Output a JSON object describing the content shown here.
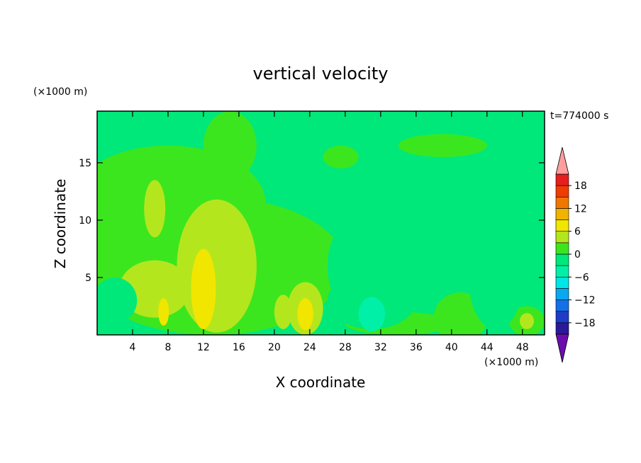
{
  "chart_data": {
    "type": "heatmap",
    "title": "vertical velocity",
    "xlabel": "X coordinate",
    "ylabel": "Z coordinate",
    "x_unit": "(×1000 m)",
    "y_unit": "(×1000 m)",
    "time_label": "t=774000 s",
    "xlim": [
      0,
      50.5
    ],
    "ylim": [
      0,
      19.5
    ],
    "x_ticks": [
      4,
      8,
      12,
      16,
      20,
      24,
      28,
      32,
      36,
      40,
      44,
      48
    ],
    "y_ticks": [
      5,
      10,
      15
    ],
    "colorbar": {
      "levels": [
        -21,
        -18,
        -15,
        -12,
        -9,
        -6,
        -3,
        0,
        3,
        6,
        9,
        12,
        15,
        18,
        21
      ],
      "tick_labels": [
        "18",
        "12",
        "6",
        "0",
        "−6",
        "−12",
        "−18"
      ],
      "tick_values": [
        18,
        12,
        6,
        0,
        -6,
        -12,
        -18
      ],
      "colors": [
        "#6a0dad",
        "#2a1a9a",
        "#1e3cc8",
        "#1470e6",
        "#0aa8f0",
        "#00e6e6",
        "#00f0a8",
        "#00e87a",
        "#3ce61e",
        "#b4e61e",
        "#f0e600",
        "#f0b400",
        "#f07800",
        "#f03c00",
        "#e61e1e",
        "#ff9e9e"
      ],
      "extend": "both"
    },
    "field": [
      {
        "shape": "blob",
        "level": 0,
        "cx": 8,
        "cy": 11.5,
        "rx": 11,
        "ry": 5
      },
      {
        "shape": "blob",
        "level": 0,
        "cx": 15,
        "cy": 16.5,
        "rx": 3,
        "ry": 3
      },
      {
        "shape": "blob",
        "level": 0,
        "cx": 2,
        "cy": 8,
        "rx": 5,
        "ry": 5
      },
      {
        "shape": "blob",
        "level": 0,
        "cx": 13,
        "cy": 6,
        "rx": 15,
        "ry": 6
      },
      {
        "shape": "blob",
        "level": 0,
        "cx": 27.5,
        "cy": 15.5,
        "rx": 2,
        "ry": 1
      },
      {
        "shape": "blob",
        "level": 0,
        "cx": 39,
        "cy": 16.5,
        "rx": 5,
        "ry": 1
      },
      {
        "shape": "blob",
        "level": 0,
        "cx": 41,
        "cy": 1.5,
        "rx": 3,
        "ry": 2.2
      },
      {
        "shape": "blob",
        "level": 0,
        "cx": 48.5,
        "cy": 1.2,
        "rx": 2,
        "ry": 1.3
      },
      {
        "shape": "blob",
        "level": 0,
        "cx": 34,
        "cy": 1.0,
        "rx": 6,
        "ry": 1
      },
      {
        "shape": "blob",
        "level": 3,
        "cx": 13.5,
        "cy": 6,
        "rx": 4.5,
        "ry": 5.8
      },
      {
        "shape": "blob",
        "level": 3,
        "cx": 6.5,
        "cy": 11,
        "rx": 1.2,
        "ry": 2.5
      },
      {
        "shape": "blob",
        "level": 3,
        "cx": 6.5,
        "cy": 4,
        "rx": 4,
        "ry": 2.5
      },
      {
        "shape": "blob",
        "level": 3,
        "cx": 23.5,
        "cy": 2.3,
        "rx": 2,
        "ry": 2.3
      },
      {
        "shape": "blob",
        "level": 3,
        "cx": 21,
        "cy": 2,
        "rx": 1,
        "ry": 1.5
      },
      {
        "shape": "blob",
        "level": 3,
        "cx": 48.5,
        "cy": 1.2,
        "rx": 0.8,
        "ry": 0.7
      },
      {
        "shape": "blob",
        "level": 6,
        "cx": 12,
        "cy": 4,
        "rx": 1.4,
        "ry": 3.5
      },
      {
        "shape": "blob",
        "level": 6,
        "cx": 23.5,
        "cy": 1.8,
        "rx": 0.9,
        "ry": 1.4
      },
      {
        "shape": "blob",
        "level": 6,
        "cx": 7.5,
        "cy": 2,
        "rx": 0.6,
        "ry": 1.2
      },
      {
        "shape": "blob",
        "level": -3,
        "cx": 29,
        "cy": 6,
        "rx": 3,
        "ry": 4
      },
      {
        "shape": "blob",
        "level": -3,
        "cx": 31,
        "cy": 3,
        "rx": 5,
        "ry": 2.5
      },
      {
        "shape": "blob",
        "level": -3,
        "cx": 45,
        "cy": 4.5,
        "rx": 3,
        "ry": 4
      },
      {
        "shape": "blob",
        "level": -3,
        "cx": 2,
        "cy": 3,
        "rx": 2.5,
        "ry": 2
      },
      {
        "shape": "blob",
        "level": -6,
        "cx": 31,
        "cy": 1.8,
        "rx": 1.5,
        "ry": 1.5
      }
    ]
  }
}
